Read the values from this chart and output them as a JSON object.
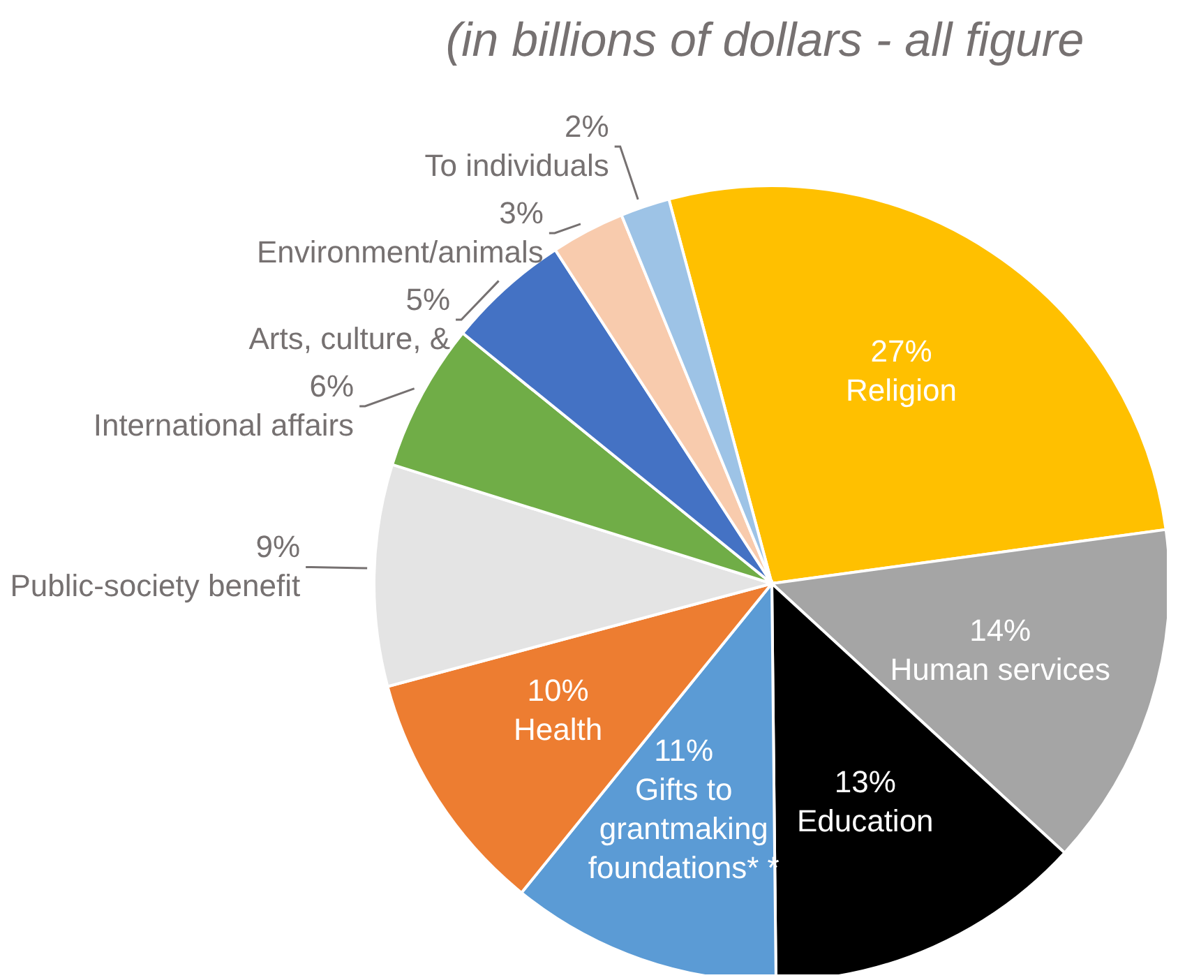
{
  "chart_data": {
    "type": "pie",
    "title": "(in billions of dollars - all figure",
    "categories": [
      "Religion",
      "Human services",
      "Education",
      "Gifts to grantmaking foundations* *",
      "Health",
      "Public-society benefit",
      "International affairs",
      "Arts, culture, &",
      "Environment/animals",
      "To individuals"
    ],
    "values": [
      27,
      14,
      13,
      11,
      10,
      9,
      6,
      5,
      3,
      2
    ],
    "colors": [
      "#ffc000",
      "#a5a5a5",
      "#000000",
      "#5b9bd5",
      "#ed7d31",
      "#e4e4e4",
      "#70ad47",
      "#4472c4",
      "#f8cbad",
      "#9dc3e6"
    ],
    "value_labels": [
      "27%",
      "14%",
      "13%",
      "11%",
      "10%",
      "9%",
      "6%",
      "5%",
      "3%",
      "2%"
    ]
  }
}
